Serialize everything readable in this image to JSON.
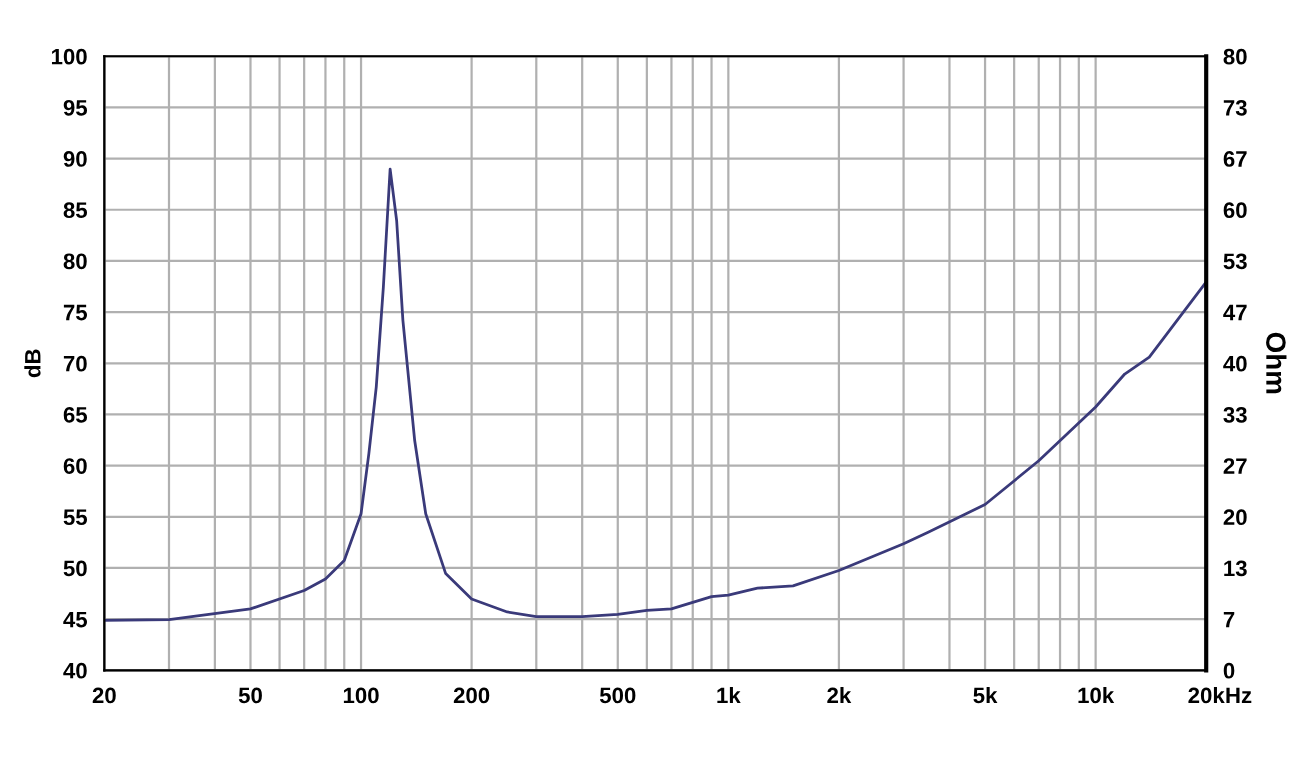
{
  "chart_data": {
    "type": "line",
    "ylabel": "dB",
    "y2label": "Ohm",
    "log": "x",
    "grid": true,
    "marker": "none",
    "line_style": "solid",
    "xlim": [
      20,
      20000
    ],
    "xticks": [
      20,
      {
        "value": 30,
        "label": null
      },
      {
        "value": 40,
        "label": null
      },
      50,
      {
        "value": 60,
        "label": null
      },
      {
        "value": 70,
        "label": null
      },
      {
        "value": 80,
        "label": null
      },
      {
        "value": 90,
        "label": null
      },
      100,
      200,
      {
        "value": 300,
        "label": null
      },
      {
        "value": 400,
        "label": null
      },
      500,
      {
        "value": 600,
        "label": null
      },
      {
        "value": 700,
        "label": null
      },
      {
        "value": 800,
        "label": null
      },
      {
        "value": 900,
        "label": null
      },
      {
        "value": 1000,
        "label": "1k"
      },
      {
        "value": 2000,
        "label": "2k"
      },
      {
        "value": 3000,
        "label": null
      },
      {
        "value": 4000,
        "label": null
      },
      {
        "value": 5000,
        "label": "5k"
      },
      {
        "value": 6000,
        "label": null
      },
      {
        "value": 7000,
        "label": null
      },
      {
        "value": 8000,
        "label": null
      },
      {
        "value": 9000,
        "label": null
      },
      {
        "value": 10000,
        "label": "10k"
      },
      {
        "value": 20000,
        "label": "20k"
      }
    ],
    "xlabel": "Hz",
    "ylim": [
      40,
      100
    ],
    "yticks": [
      40,
      45,
      50,
      55,
      60,
      65,
      70,
      75,
      80,
      85,
      90,
      95,
      100
    ],
    "y2lim": [
      0,
      80
    ],
    "y2ticks": [
      0,
      {
        "value": 6.667,
        "label": "7"
      },
      {
        "value": 13.333,
        "label": "13"
      },
      20,
      {
        "value": 26.667,
        "label": "27"
      },
      {
        "value": 33.333,
        "label": "33"
      },
      40,
      {
        "value": 46.667,
        "label": "47"
      },
      {
        "value": 53.333,
        "label": "53"
      },
      60,
      {
        "value": 66.667,
        "label": "67"
      },
      {
        "value": 73.333,
        "label": "73"
      },
      80
    ],
    "series": [
      {
        "axis": "y2",
        "color": "#3a3a7a",
        "x": [
          20,
          30,
          50,
          70,
          80,
          90,
          100,
          105,
          110,
          115,
          120,
          125,
          130,
          140,
          150,
          170,
          200,
          250,
          300,
          400,
          500,
          600,
          700,
          900,
          1000,
          1200,
          1500,
          2000,
          3000,
          3500,
          5000,
          7000,
          10000,
          12000,
          14000,
          20000
        ],
        "values": [
          6.5,
          6.6,
          8.0,
          10.4,
          11.9,
          14.3,
          20.4,
          28.2,
          36.9,
          49.9,
          65.3,
          58.6,
          45.6,
          29.9,
          20.4,
          12.6,
          9.3,
          7.6,
          7.0,
          7.0,
          7.3,
          7.8,
          8.0,
          9.6,
          9.8,
          10.7,
          11.0,
          13.0,
          16.5,
          18.0,
          21.6,
          27.3,
          34.3,
          38.6,
          40.8,
          50.6
        ]
      }
    ]
  }
}
